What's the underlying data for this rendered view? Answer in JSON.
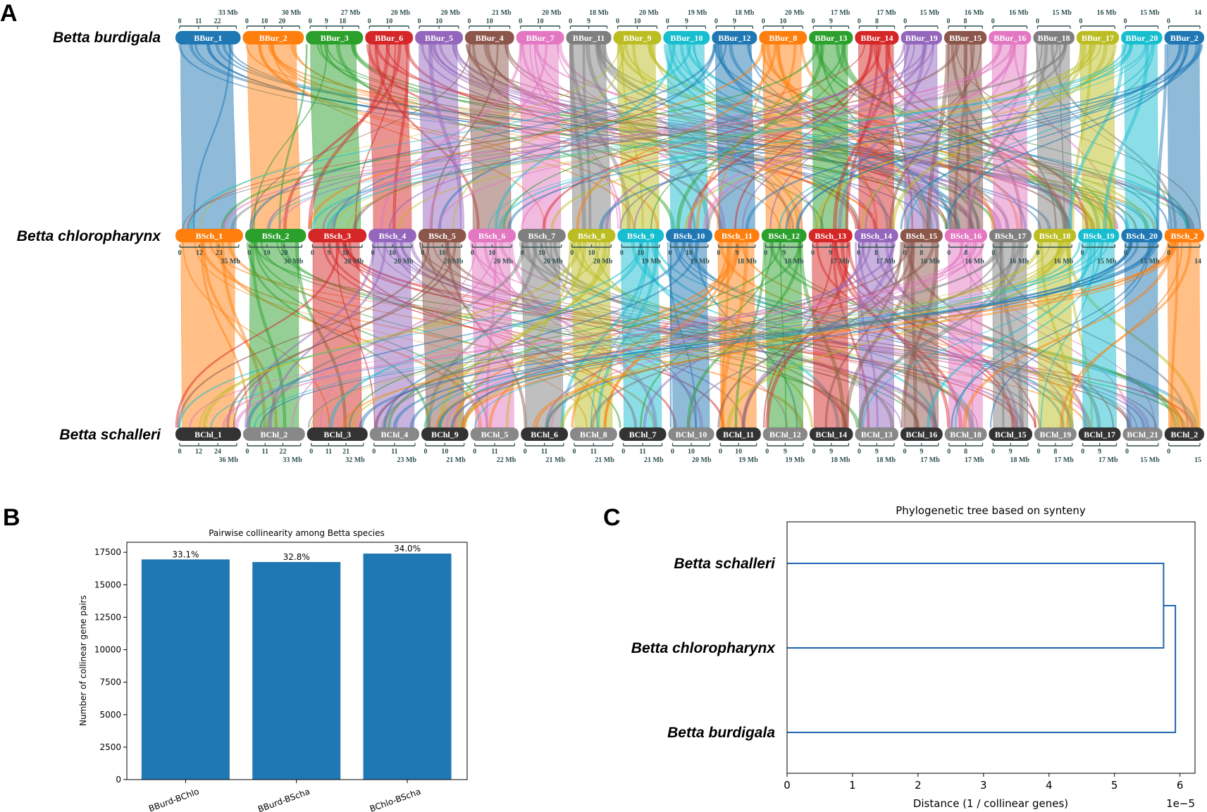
{
  "panels": {
    "a": "A",
    "b": "B",
    "c": "C"
  },
  "synteny": {
    "rows": [
      {
        "species": "Betta burdigala",
        "tick_position": "above",
        "chromosomes": [
          {
            "name": "BBur_1",
            "color": "#1f77b4",
            "ticks": [
              "0",
              "11",
              "22",
              "33 Mb"
            ]
          },
          {
            "name": "BBur_2",
            "color": "#ff7f0e",
            "ticks": [
              "0",
              "10",
              "20",
              "30 Mb"
            ]
          },
          {
            "name": "BBur_3",
            "color": "#2ca02c",
            "ticks": [
              "0",
              "9",
              "18",
              "27 Mb"
            ]
          },
          {
            "name": "BBur_6",
            "color": "#d62728",
            "ticks": [
              "0",
              "10",
              "20 Mb"
            ]
          },
          {
            "name": "BBur_5",
            "color": "#9467bd",
            "ticks": [
              "0",
              "10",
              "20 Mb"
            ]
          },
          {
            "name": "BBur_4",
            "color": "#8c564b",
            "ticks": [
              "0",
              "10",
              "21 Mb"
            ]
          },
          {
            "name": "BBur_7",
            "color": "#e377c2",
            "ticks": [
              "0",
              "10",
              "20 Mb"
            ]
          },
          {
            "name": "BBur_11",
            "color": "#7f7f7f",
            "ticks": [
              "0",
              "9",
              "18 Mb"
            ]
          },
          {
            "name": "BBur_9",
            "color": "#bcbd22",
            "ticks": [
              "0",
              "10",
              "20 Mb"
            ]
          },
          {
            "name": "BBur_10",
            "color": "#17becf",
            "ticks": [
              "0",
              "9",
              "19 Mb"
            ]
          },
          {
            "name": "BBur_12",
            "color": "#1f77b4",
            "ticks": [
              "0",
              "9",
              "18 Mb"
            ]
          },
          {
            "name": "BBur_8",
            "color": "#ff7f0e",
            "ticks": [
              "0",
              "10",
              "20 Mb"
            ]
          },
          {
            "name": "BBur_13",
            "color": "#2ca02c",
            "ticks": [
              "0",
              "9",
              "17 Mb"
            ]
          },
          {
            "name": "BBur_14",
            "color": "#d62728",
            "ticks": [
              "0",
              "8",
              "17 Mb"
            ]
          },
          {
            "name": "BBur_19",
            "color": "#9467bd",
            "ticks": [
              "0",
              "15 Mb"
            ]
          },
          {
            "name": "BBur_15",
            "color": "#8c564b",
            "ticks": [
              "0",
              "8",
              "16 Mb"
            ]
          },
          {
            "name": "BBur_16",
            "color": "#e377c2",
            "ticks": [
              "0",
              "16 Mb"
            ]
          },
          {
            "name": "BBur_18",
            "color": "#7f7f7f",
            "ticks": [
              "0",
              "15 Mb"
            ]
          },
          {
            "name": "BBur_17",
            "color": "#bcbd22",
            "ticks": [
              "0",
              "16 Mb"
            ]
          },
          {
            "name": "BBur_20",
            "color": "#17becf",
            "ticks": [
              "0",
              "15 Mb"
            ]
          },
          {
            "name": "BBur_2",
            "color": "#1f77b4",
            "ticks": [
              "0",
              "14"
            ]
          }
        ]
      },
      {
        "species": "Betta chloropharynx",
        "tick_position": "below",
        "chromosomes": [
          {
            "name": "BSch_1",
            "color": "#ff7f0e",
            "ticks": [
              "0",
              "12",
              "23",
              "35 Mb"
            ]
          },
          {
            "name": "BSch_2",
            "color": "#2ca02c",
            "ticks": [
              "0",
              "10",
              "20",
              "30 Mb"
            ]
          },
          {
            "name": "BSch_3",
            "color": "#d62728",
            "ticks": [
              "0",
              "9",
              "18",
              "28 Mb"
            ]
          },
          {
            "name": "BSch_4",
            "color": "#9467bd",
            "ticks": [
              "0",
              "10",
              "20 Mb"
            ]
          },
          {
            "name": "BSch_5",
            "color": "#8c564b",
            "ticks": [
              "0",
              "10",
              "20 Mb"
            ]
          },
          {
            "name": "BSch_6",
            "color": "#e377c2",
            "ticks": [
              "0",
              "10",
              "20 Mb"
            ]
          },
          {
            "name": "BSch_7",
            "color": "#7f7f7f",
            "ticks": [
              "0",
              "10",
              "20 Mb"
            ]
          },
          {
            "name": "BSch_8",
            "color": "#bcbd22",
            "ticks": [
              "0",
              "10",
              "20 Mb"
            ]
          },
          {
            "name": "BSch_9",
            "color": "#17becf",
            "ticks": [
              "0",
              "10",
              "19 Mb"
            ]
          },
          {
            "name": "BSch_10",
            "color": "#1f77b4",
            "ticks": [
              "0",
              "10",
              "19 Mb"
            ]
          },
          {
            "name": "BSch_11",
            "color": "#ff7f0e",
            "ticks": [
              "0",
              "9",
              "18 Mb"
            ]
          },
          {
            "name": "BSch_12",
            "color": "#2ca02c",
            "ticks": [
              "0",
              "9",
              "18 Mb"
            ]
          },
          {
            "name": "BSch_13",
            "color": "#d62728",
            "ticks": [
              "0",
              "9",
              "17 Mb"
            ]
          },
          {
            "name": "BSch_14",
            "color": "#9467bd",
            "ticks": [
              "0",
              "8",
              "17 Mb"
            ]
          },
          {
            "name": "BSch_15",
            "color": "#8c564b",
            "ticks": [
              "0",
              "8",
              "16 Mb"
            ]
          },
          {
            "name": "BSch_16",
            "color": "#e377c2",
            "ticks": [
              "0",
              "8",
              "16 Mb"
            ]
          },
          {
            "name": "BSch_17",
            "color": "#7f7f7f",
            "ticks": [
              "0",
              "16 Mb"
            ]
          },
          {
            "name": "BSch_18",
            "color": "#bcbd22",
            "ticks": [
              "0",
              "16 Mb"
            ]
          },
          {
            "name": "BSch_19",
            "color": "#17becf",
            "ticks": [
              "0",
              "15 Mb"
            ]
          },
          {
            "name": "BSch_20",
            "color": "#1f77b4",
            "ticks": [
              "0",
              "15 Mb"
            ]
          },
          {
            "name": "BSch_2",
            "color": "#ff7f0e",
            "ticks": [
              "0",
              "14"
            ]
          }
        ]
      },
      {
        "species": "Betta schalleri",
        "tick_position": "below",
        "chromosomes": [
          {
            "name": "BChl_1",
            "color": "#333333",
            "ticks": [
              "0",
              "12",
              "24",
              "36 Mb"
            ]
          },
          {
            "name": "BChl_2",
            "color": "#888888",
            "ticks": [
              "0",
              "11",
              "22",
              "33 Mb"
            ]
          },
          {
            "name": "BChl_3",
            "color": "#333333",
            "ticks": [
              "0",
              "11",
              "21",
              "32 Mb"
            ]
          },
          {
            "name": "BChl_4",
            "color": "#888888",
            "ticks": [
              "0",
              "11",
              "23 Mb"
            ]
          },
          {
            "name": "BChl_9",
            "color": "#333333",
            "ticks": [
              "0",
              "10",
              "21 Mb"
            ]
          },
          {
            "name": "BChl_5",
            "color": "#888888",
            "ticks": [
              "0",
              "11",
              "22 Mb"
            ]
          },
          {
            "name": "BChl_6",
            "color": "#333333",
            "ticks": [
              "0",
              "11",
              "21 Mb"
            ]
          },
          {
            "name": "BChl_8",
            "color": "#888888",
            "ticks": [
              "0",
              "11",
              "21 Mb"
            ]
          },
          {
            "name": "BChl_7",
            "color": "#333333",
            "ticks": [
              "0",
              "11",
              "21 Mb"
            ]
          },
          {
            "name": "BChl_10",
            "color": "#888888",
            "ticks": [
              "0",
              "10",
              "20 Mb"
            ]
          },
          {
            "name": "BChl_11",
            "color": "#333333",
            "ticks": [
              "0",
              "10",
              "19 Mb"
            ]
          },
          {
            "name": "BChl_12",
            "color": "#888888",
            "ticks": [
              "0",
              "9",
              "19 Mb"
            ]
          },
          {
            "name": "BChl_14",
            "color": "#333333",
            "ticks": [
              "0",
              "9",
              "18 Mb"
            ]
          },
          {
            "name": "BChl_13",
            "color": "#888888",
            "ticks": [
              "0",
              "9",
              "18 Mb"
            ]
          },
          {
            "name": "BChl_16",
            "color": "#333333",
            "ticks": [
              "0",
              "9",
              "17 Mb"
            ]
          },
          {
            "name": "BChl_18",
            "color": "#888888",
            "ticks": [
              "0",
              "8",
              "17 Mb"
            ]
          },
          {
            "name": "BChl_15",
            "color": "#333333",
            "ticks": [
              "0",
              "9",
              "18 Mb"
            ]
          },
          {
            "name": "BChl_19",
            "color": "#888888",
            "ticks": [
              "0",
              "8",
              "17 Mb"
            ]
          },
          {
            "name": "BChl_17",
            "color": "#333333",
            "ticks": [
              "0",
              "9",
              "17 Mb"
            ]
          },
          {
            "name": "BChl_21",
            "color": "#888888",
            "ticks": [
              "0",
              "15 Mb"
            ]
          },
          {
            "name": "BChl_2",
            "color": "#333333",
            "ticks": [
              "0",
              "15"
            ]
          }
        ]
      }
    ]
  },
  "chart_data": [
    {
      "type": "bar",
      "title": "Pairwise collinearity among Betta species",
      "xlabel": "",
      "ylabel": "Number of collinear gene pairs",
      "categories": [
        "BBurd-BChlo",
        "BBurd-BScha",
        "BChlo-BScha"
      ],
      "values": [
        16950,
        16750,
        17400
      ],
      "data_labels": [
        "33.1%",
        "32.8%",
        "34.0%"
      ],
      "yticks": [
        0,
        2500,
        5000,
        7500,
        10000,
        12500,
        15000,
        17500
      ],
      "ylim": [
        0,
        18270
      ],
      "color": "#1f77b4",
      "grid": false
    },
    {
      "type": "dendrogram",
      "title": "Phylogenetic tree based on synteny",
      "xlabel": "Distance (1 / collinear genes)",
      "x_offset_label": "1e−5",
      "xticks": [
        0,
        1,
        2,
        3,
        4,
        5,
        6
      ],
      "xlim": [
        0,
        6.23
      ],
      "leaves": [
        "Betta schalleri",
        "Betta chloropharynx",
        "Betta burdigala"
      ],
      "merges": [
        {
          "join": [
            "Betta schalleri",
            "Betta chloropharynx"
          ],
          "height": 5.75
        },
        {
          "join": [
            "Betta schalleri+Betta chloropharynx",
            "Betta burdigala"
          ],
          "height": 5.93
        }
      ],
      "color": "#1f65b0",
      "grid": false
    }
  ]
}
